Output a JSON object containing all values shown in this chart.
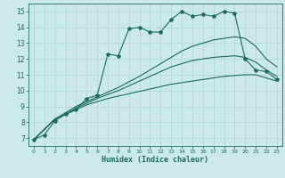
{
  "xlabel": "Humidex (Indice chaleur)",
  "xlim": [
    -0.5,
    23.5
  ],
  "ylim": [
    6.5,
    15.5
  ],
  "xticks": [
    0,
    1,
    2,
    3,
    4,
    5,
    6,
    7,
    8,
    9,
    10,
    11,
    12,
    13,
    14,
    15,
    16,
    17,
    18,
    19,
    20,
    21,
    22,
    23
  ],
  "yticks": [
    7,
    8,
    9,
    10,
    11,
    12,
    13,
    14,
    15
  ],
  "bg_color": "#cce9e9",
  "line_color": "#1a6b5a",
  "grid_color": "#aed4d4",
  "lines": [
    {
      "x": [
        0,
        1,
        2,
        3,
        4,
        5,
        6,
        7,
        8,
        9,
        10,
        11,
        12,
        13,
        14,
        15,
        16,
        17,
        18,
        19,
        20,
        21,
        22,
        23
      ],
      "y": [
        6.9,
        7.2,
        8.1,
        8.5,
        8.8,
        9.5,
        9.7,
        12.3,
        12.2,
        13.9,
        14.0,
        13.7,
        13.7,
        14.5,
        15.0,
        14.7,
        14.8,
        14.7,
        15.0,
        14.9,
        12.0,
        11.3,
        11.2,
        10.7
      ],
      "marker": true
    },
    {
      "x": [
        0,
        2,
        3,
        4,
        5,
        6,
        7,
        8,
        9,
        10,
        11,
        12,
        13,
        14,
        15,
        16,
        17,
        18,
        19,
        20,
        21,
        22,
        23
      ],
      "y": [
        6.9,
        8.2,
        8.5,
        8.8,
        9.1,
        9.3,
        9.5,
        9.65,
        9.8,
        9.95,
        10.1,
        10.25,
        10.4,
        10.5,
        10.6,
        10.7,
        10.8,
        10.9,
        10.95,
        11.0,
        11.0,
        10.8,
        10.6
      ],
      "marker": false
    },
    {
      "x": [
        0,
        2,
        3,
        4,
        5,
        6,
        7,
        8,
        9,
        10,
        11,
        12,
        13,
        14,
        15,
        16,
        17,
        18,
        19,
        20,
        21,
        22,
        23
      ],
      "y": [
        6.9,
        8.2,
        8.5,
        8.9,
        9.2,
        9.5,
        9.75,
        10.0,
        10.3,
        10.6,
        10.9,
        11.2,
        11.5,
        11.7,
        11.9,
        12.0,
        12.1,
        12.15,
        12.2,
        12.1,
        11.8,
        11.3,
        10.9
      ],
      "marker": false
    },
    {
      "x": [
        0,
        2,
        3,
        4,
        5,
        6,
        7,
        8,
        9,
        10,
        11,
        12,
        13,
        14,
        15,
        16,
        17,
        18,
        19,
        20,
        21,
        22,
        23
      ],
      "y": [
        6.9,
        8.2,
        8.6,
        9.0,
        9.3,
        9.6,
        9.9,
        10.2,
        10.55,
        10.9,
        11.3,
        11.7,
        12.1,
        12.5,
        12.8,
        13.0,
        13.2,
        13.3,
        13.4,
        13.3,
        12.8,
        12.0,
        11.5
      ],
      "marker": false
    }
  ]
}
